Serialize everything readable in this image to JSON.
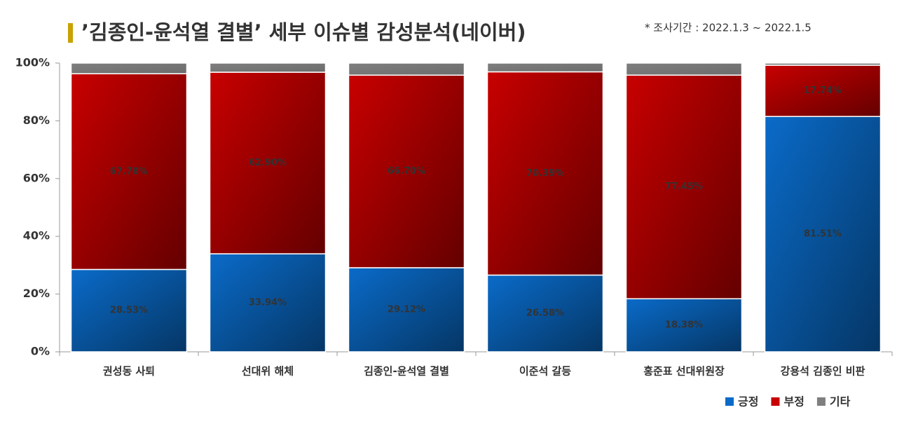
{
  "chart_data": {
    "type": "stacked_bar",
    "title": "’김종인-윤석열 결별’ 세부 이슈별 감성분석(네이버)",
    "subtitle": "* 조사기간 : 2022.1.3 ~ 2022.1.5",
    "categories": [
      "권성동 사퇴",
      "선대위 해체",
      "김종인-윤석열 결별",
      "이준석 갈등",
      "홍준표 선대위원장",
      "강용석 김종인 비판"
    ],
    "series": [
      {
        "name": "긍정",
        "color": "#0a6bc9",
        "values": [
          28.53,
          33.94,
          29.12,
          26.58,
          18.38,
          81.51
        ],
        "value_labels": [
          "28.53%",
          "33.94%",
          "29.12%",
          "26.58%",
          "18.38%",
          "81.51%"
        ]
      },
      {
        "name": "부정",
        "color": "#c80000",
        "values": [
          67.78,
          62.9,
          66.7,
          70.39,
          77.45,
          17.74
        ],
        "value_labels": [
          "67.78%",
          "62.90%",
          "66.70%",
          "70.39%",
          "77.45%",
          "17.74%"
        ]
      },
      {
        "name": "기타",
        "color": "#7f7f7f",
        "values": [
          3.69,
          3.16,
          4.18,
          3.03,
          4.17,
          0.75
        ]
      }
    ],
    "ylim": [
      0,
      100
    ],
    "yticks": [
      {
        "value": 0,
        "label": "0%"
      },
      {
        "value": 20,
        "label": "20%"
      },
      {
        "value": 40,
        "label": "40%"
      },
      {
        "value": 60,
        "label": "60%"
      },
      {
        "value": 80,
        "label": "80%"
      },
      {
        "value": 100,
        "label": "100%"
      }
    ],
    "legend": "bottom-right"
  }
}
